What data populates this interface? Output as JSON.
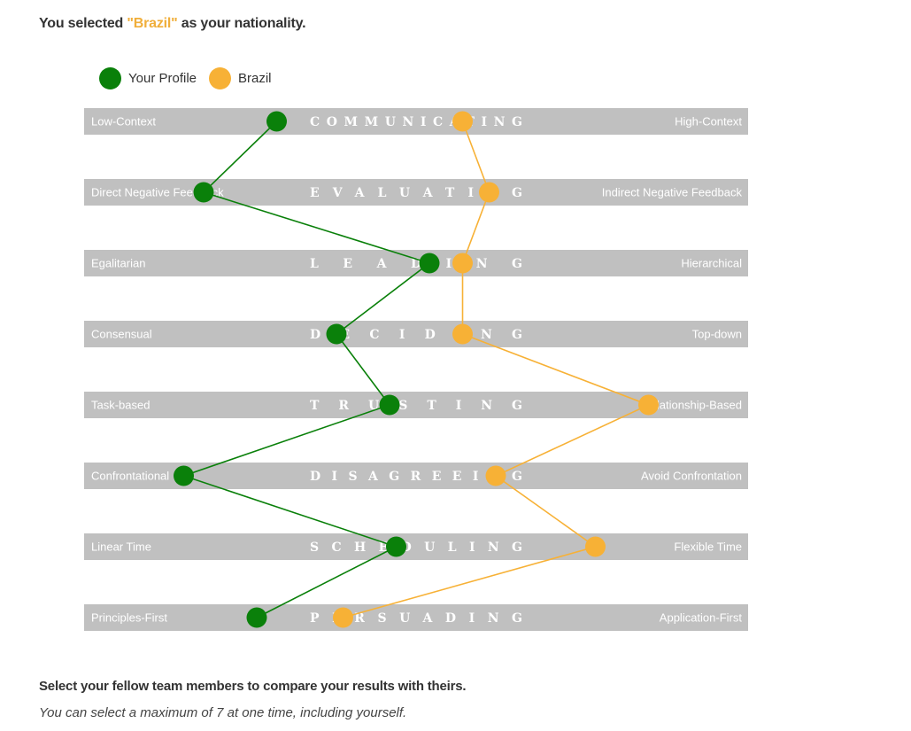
{
  "header": {
    "prefix": "You selected ",
    "country": "\"Brazil\"",
    "suffix": " as your nationality."
  },
  "footer": {
    "title": "Select your fellow team members to compare your results with theirs.",
    "note": "You can select a maximum of 7 at one time, including yourself."
  },
  "colors": {
    "profile": "#0a800a",
    "brazil": "#f7b136",
    "bar": "#c0c0c0",
    "bar_text": "#ffffff"
  },
  "chart_data": {
    "type": "line",
    "x_range": [
      0,
      100
    ],
    "legend_position": "top-left",
    "scales": [
      {
        "name": "COMMUNICATING",
        "left": "Low-Context",
        "right": "High-Context"
      },
      {
        "name": "EVALUATING",
        "left": "Direct Negative Feedback",
        "right": "Indirect Negative Feedback"
      },
      {
        "name": "LEADING",
        "left": "Egalitarian",
        "right": "Hierarchical"
      },
      {
        "name": "DECIDING",
        "left": "Consensual",
        "right": "Top-down"
      },
      {
        "name": "TRUSTING",
        "left": "Task-based",
        "right": "Relationship-Based"
      },
      {
        "name": "DISAGREEING",
        "left": "Confrontational",
        "right": "Avoid Confrontation"
      },
      {
        "name": "SCHEDULING",
        "left": "Linear Time",
        "right": "Flexible Time"
      },
      {
        "name": "PERSUADING",
        "left": "Principles-First",
        "right": "Application-First"
      }
    ],
    "series": [
      {
        "name": "Your Profile",
        "color": "#0a800a",
        "values": [
          29,
          18,
          52,
          38,
          46,
          15,
          47,
          26
        ]
      },
      {
        "name": "Brazil",
        "color": "#f7b136",
        "values": [
          57,
          61,
          57,
          57,
          85,
          62,
          77,
          39
        ]
      }
    ]
  }
}
